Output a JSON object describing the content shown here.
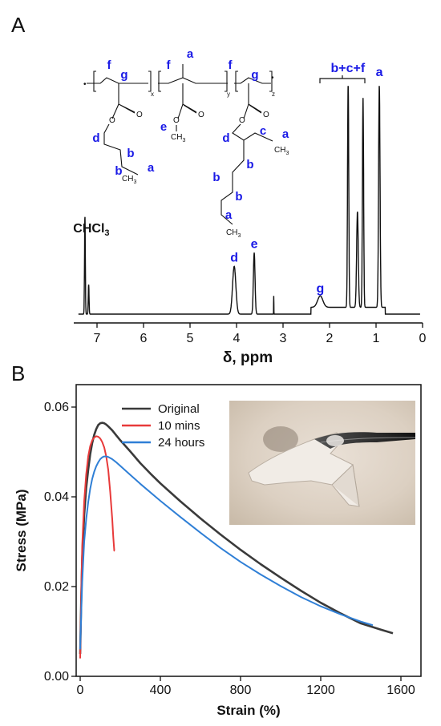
{
  "colors": {
    "axis": "#111111",
    "label_blue": "#1a1ae6",
    "nmr_line": "#111111"
  },
  "panel_a": {
    "panel_label": "A",
    "chart_data": {
      "type": "line",
      "xlabel": "δ, ppm",
      "x_reversed": true,
      "xlim": [
        7.5,
        0
      ],
      "xticks": [
        7,
        6,
        5,
        4,
        3,
        2,
        1,
        0
      ],
      "ylim": [
        0,
        1
      ],
      "y_axis_shown": false,
      "grid": false,
      "peaks": [
        {
          "x": 7.26,
          "height": 0.43
        },
        {
          "x": 7.18,
          "height": 0.13
        },
        {
          "x": 4.05,
          "height": 0.21
        },
        {
          "x": 3.62,
          "height": 0.27
        },
        {
          "x": 3.2,
          "height": 0.08
        },
        {
          "x": 2.2,
          "height": 0.05
        },
        {
          "x": 1.6,
          "height": 1.0
        },
        {
          "x": 1.4,
          "height": 0.42
        },
        {
          "x": 1.28,
          "height": 0.92
        },
        {
          "x": 0.93,
          "height": 0.98
        }
      ],
      "annotations": [
        {
          "text": "CHCl3",
          "x": 7.26
        },
        {
          "text": "d",
          "x": 4.05
        },
        {
          "text": "e",
          "x": 3.62
        },
        {
          "text": "g",
          "x": 2.2
        },
        {
          "text": "b+c+f",
          "x": 1.4
        },
        {
          "text": "a",
          "x": 0.93
        }
      ]
    },
    "structure": {
      "labels": [
        "f",
        "g",
        "f",
        "a",
        "f",
        "g",
        "e",
        "d",
        "b",
        "b",
        "a",
        "d",
        "c",
        "a",
        "b",
        "b",
        "b",
        "a"
      ],
      "subscripts": [
        "x",
        "y",
        "z"
      ],
      "ch3_text": "CH",
      "three": "3",
      "chcl3_main": "CHCl",
      "chcl3_sub": "3"
    }
  },
  "panel_b": {
    "panel_label": "B",
    "chart_data": {
      "type": "line",
      "xlabel": "Strain (%)",
      "ylabel": "Stress (MPa)",
      "xlim": [
        -20,
        1700
      ],
      "ylim": [
        0,
        0.065
      ],
      "xticks": [
        0,
        400,
        800,
        1200,
        1600
      ],
      "yticks": [
        0.0,
        0.02,
        0.04,
        0.06
      ],
      "ytick_labels": [
        "0.00",
        "0.02",
        "0.04",
        "0.06"
      ],
      "grid": false,
      "legend_position": "top-left",
      "series": [
        {
          "name": "Original",
          "color": "#3a3a3a",
          "x": [
            0,
            5,
            10,
            20,
            30,
            40,
            50,
            60,
            70,
            80,
            90,
            100,
            110,
            120,
            130,
            140,
            160,
            180,
            200,
            250,
            300,
            350,
            400,
            500,
            600,
            700,
            800,
            900,
            1000,
            1100,
            1200,
            1300,
            1400,
            1500,
            1560
          ],
          "y": [
            0.005,
            0.017,
            0.026,
            0.036,
            0.042,
            0.046,
            0.0495,
            0.052,
            0.0538,
            0.0551,
            0.056,
            0.0564,
            0.0565,
            0.0564,
            0.0561,
            0.0557,
            0.0548,
            0.0537,
            0.0526,
            0.0501,
            0.0475,
            0.0452,
            0.043,
            0.039,
            0.0352,
            0.0316,
            0.0282,
            0.025,
            0.022,
            0.0191,
            0.0164,
            0.014,
            0.0118,
            0.0104,
            0.0096
          ]
        },
        {
          "name": "10 mins",
          "color": "#e83a3a",
          "x": [
            0,
            3,
            6,
            10,
            20,
            30,
            40,
            50,
            60,
            70,
            80,
            90,
            100,
            110,
            120,
            130,
            140,
            150,
            160,
            165,
            170,
            172
          ],
          "y": [
            0.004,
            0.012,
            0.02,
            0.029,
            0.039,
            0.045,
            0.049,
            0.0513,
            0.0526,
            0.0532,
            0.0535,
            0.0534,
            0.053,
            0.0522,
            0.051,
            0.049,
            0.046,
            0.041,
            0.035,
            0.031,
            0.028,
            0.028
          ]
        },
        {
          "name": "24 hours",
          "color": "#2f7fd6",
          "x": [
            0,
            5,
            10,
            20,
            30,
            40,
            50,
            60,
            70,
            80,
            90,
            100,
            110,
            120,
            130,
            140,
            160,
            180,
            200,
            250,
            300,
            400,
            500,
            600,
            700,
            800,
            900,
            1000,
            1100,
            1200,
            1300,
            1400,
            1460
          ],
          "y": [
            0.006,
            0.014,
            0.021,
            0.03,
            0.035,
            0.0388,
            0.0418,
            0.044,
            0.0456,
            0.0468,
            0.0477,
            0.0484,
            0.0488,
            0.049,
            0.049,
            0.0489,
            0.0484,
            0.0477,
            0.0469,
            0.0449,
            0.0429,
            0.0391,
            0.0355,
            0.032,
            0.0286,
            0.0255,
            0.0227,
            0.0201,
            0.0177,
            0.0156,
            0.0138,
            0.0122,
            0.0114
          ]
        }
      ]
    },
    "inset": {
      "kind": "photo"
    }
  }
}
